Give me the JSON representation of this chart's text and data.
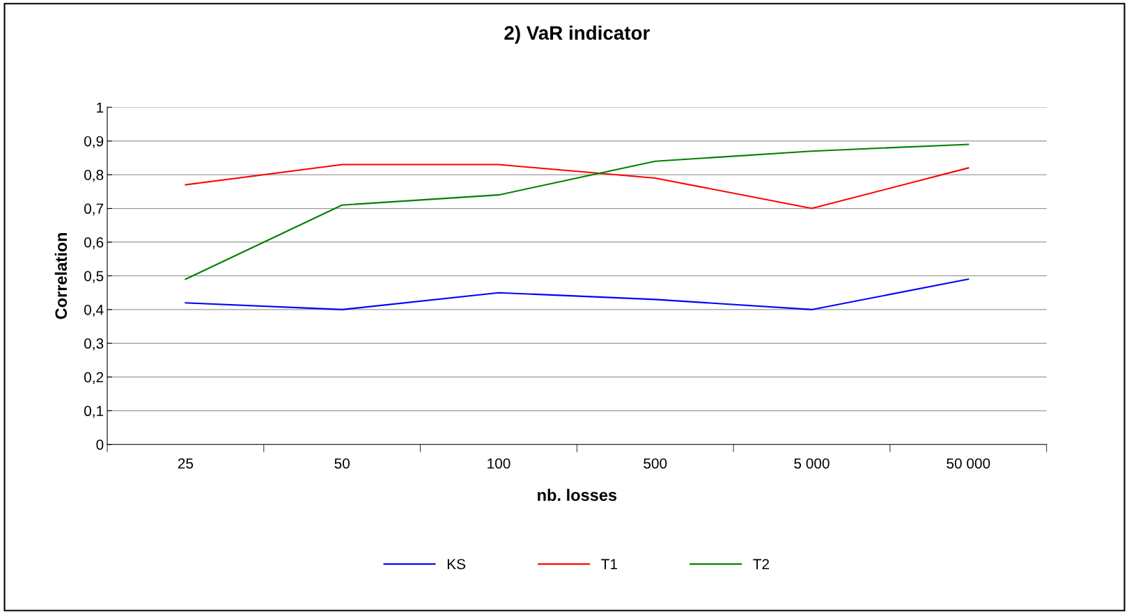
{
  "chart_data": {
    "type": "line",
    "title": "2) VaR indicator",
    "xlabel": "nb. losses",
    "ylabel": "Correlation",
    "categories": [
      "25",
      "50",
      "100",
      "500",
      "5 000",
      "50 000"
    ],
    "series": [
      {
        "name": "KS",
        "color": "#0000ff",
        "values": [
          0.42,
          0.4,
          0.45,
          0.43,
          0.4,
          0.49
        ]
      },
      {
        "name": "T1",
        "color": "#ff0000",
        "values": [
          0.77,
          0.83,
          0.83,
          0.79,
          0.7,
          0.82
        ]
      },
      {
        "name": "T2",
        "color": "#008000",
        "values": [
          0.49,
          0.71,
          0.74,
          0.84,
          0.87,
          0.89
        ]
      }
    ],
    "ylim": [
      0,
      1
    ],
    "yticks": [
      0,
      {
        "value": 0.1,
        "label": "0,1"
      },
      {
        "value": 0.2,
        "label": "0,2"
      },
      {
        "value": 0.3,
        "label": "0,3"
      },
      {
        "value": 0.4,
        "label": "0,4"
      },
      {
        "value": 0.5,
        "label": "0,5"
      },
      {
        "value": 0.6,
        "label": "0,6"
      },
      {
        "value": 0.7,
        "label": "0,7"
      },
      {
        "value": 0.8,
        "label": "0,8"
      },
      {
        "value": 0.9,
        "label": "0,9"
      },
      1
    ],
    "grid": "y",
    "legend": "bottom",
    "marker": "none",
    "line_style": "solid"
  }
}
